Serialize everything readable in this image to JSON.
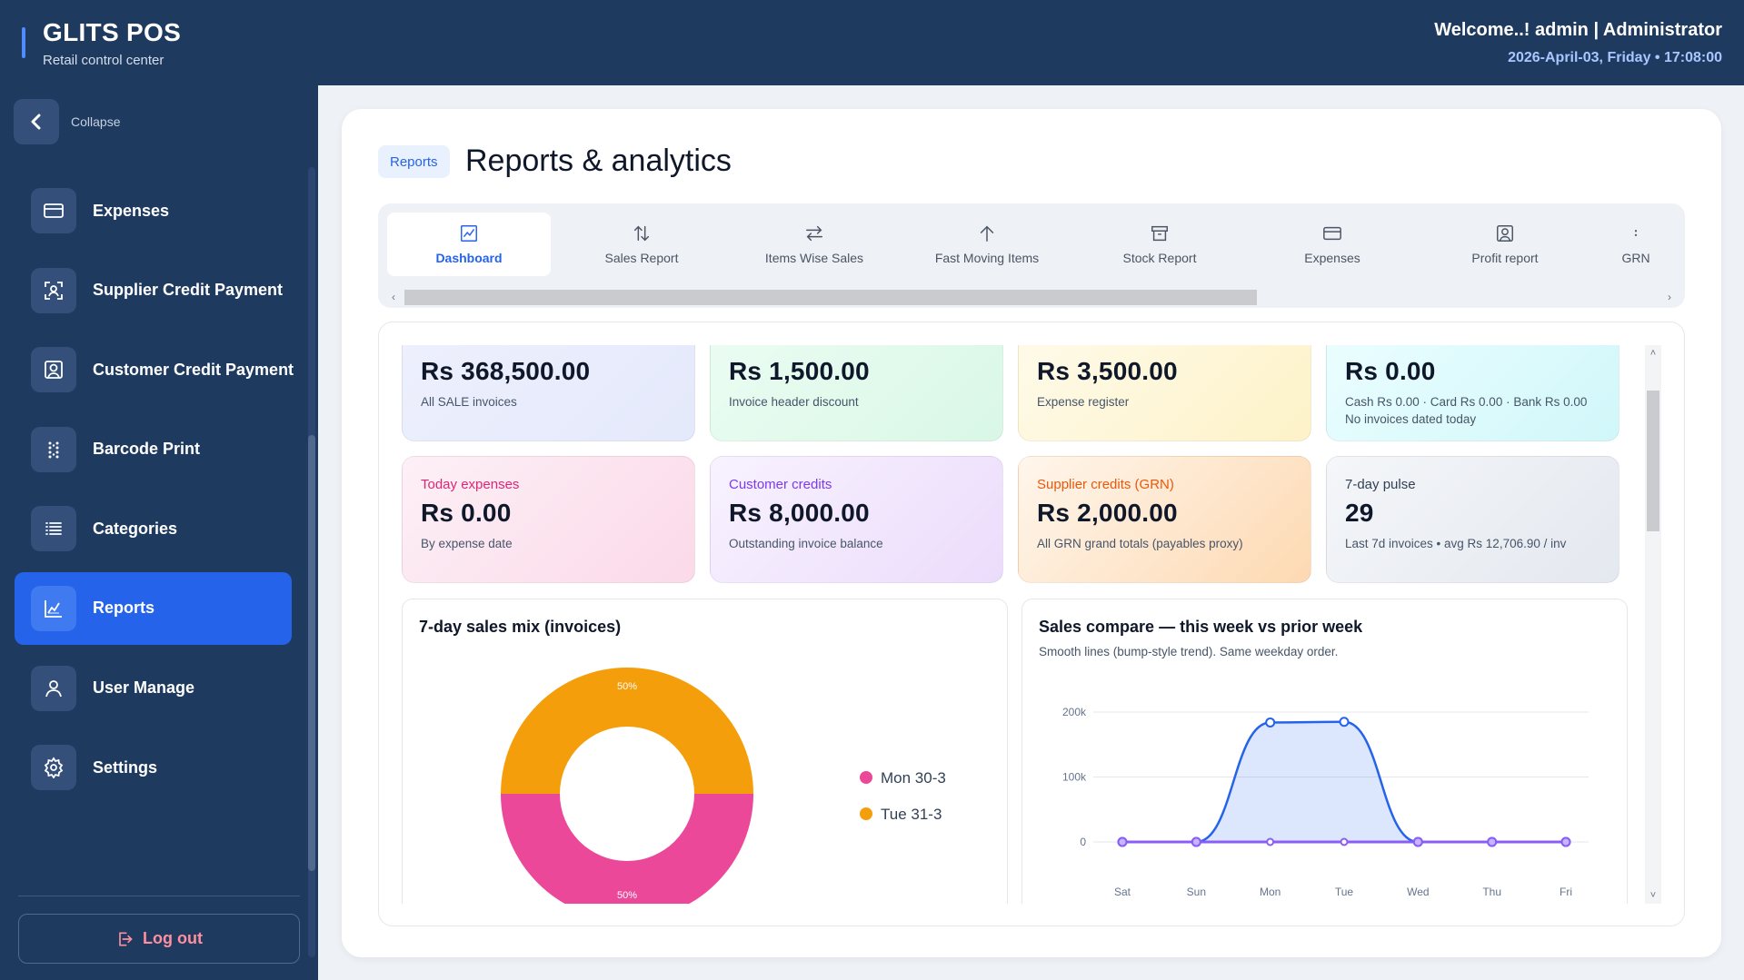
{
  "app": {
    "brand_title": "GLITS POS",
    "brand_subtitle": "Retail control center",
    "welcome": "Welcome..! admin | Administrator",
    "datetime": "2026-April-03, Friday  •  17:08:00"
  },
  "sidebar": {
    "collapse_label": "Collapse",
    "items": [
      {
        "label": "Expenses",
        "icon": "card-icon"
      },
      {
        "label": "Supplier Credit Payment",
        "icon": "user-scan-icon"
      },
      {
        "label": "Customer Credit Payment",
        "icon": "user-frame-icon"
      },
      {
        "label": "Barcode Print",
        "icon": "barcode-icon"
      },
      {
        "label": "Categories",
        "icon": "list-icon"
      },
      {
        "label": "Reports",
        "icon": "chart-icon",
        "active": true
      },
      {
        "label": "User Manage",
        "icon": "user-icon"
      },
      {
        "label": "Settings",
        "icon": "gear-icon"
      }
    ],
    "logout_label": "Log out"
  },
  "page": {
    "breadcrumb": "Reports",
    "title": "Reports & analytics"
  },
  "tabs": [
    {
      "label": "Dashboard",
      "icon": "dashboard-icon",
      "active": true
    },
    {
      "label": "Sales Report",
      "icon": "sort-arrows-icon"
    },
    {
      "label": "Items Wise Sales",
      "icon": "swap-arrows-icon"
    },
    {
      "label": "Fast Moving Items",
      "icon": "arrow-up-icon"
    },
    {
      "label": "Stock Report",
      "icon": "archive-icon"
    },
    {
      "label": "Expenses",
      "icon": "card-icon"
    },
    {
      "label": "Profit report",
      "icon": "user-frame-icon"
    },
    {
      "label": "GRN",
      "icon": "dots-icon"
    }
  ],
  "stats": [
    {
      "label": "",
      "value": "Rs 368,500.00",
      "sub": "All SALE invoices"
    },
    {
      "label": "",
      "value": "Rs 1,500.00",
      "sub": "Invoice header discount"
    },
    {
      "label": "",
      "value": "Rs 3,500.00",
      "sub": "Expense register"
    },
    {
      "label": "",
      "value": "Rs 0.00",
      "sub": "Cash Rs 0.00 · Card Rs 0.00 · Bank Rs 0.00",
      "sub2": "No invoices dated today"
    },
    {
      "label": "Today expenses",
      "value": "Rs 0.00",
      "sub": "By expense date"
    },
    {
      "label": "Customer credits",
      "value": "Rs 8,000.00",
      "sub": "Outstanding invoice balance"
    },
    {
      "label": "Supplier credits (GRN)",
      "value": "Rs 2,000.00",
      "sub": "All GRN grand totals (payables proxy)"
    },
    {
      "label": "7-day pulse",
      "value": "29",
      "sub": "Last 7d invoices • avg Rs 12,706.90 / inv"
    }
  ],
  "colors": {
    "accent": "#2563eb",
    "sidebar_bg": "#1e3a5f",
    "pink": "#ec4899",
    "orange": "#f59e0b",
    "line_blue": "#2563eb",
    "line_purple": "#8b5cf6"
  },
  "chart_data": [
    {
      "type": "pie",
      "title": "7-day sales mix (invoices)",
      "categories": [
        "Mon 30-3",
        "Tue 31-3"
      ],
      "values": [
        50,
        50
      ],
      "slice_labels": [
        "50%",
        "50%"
      ],
      "legend": "right"
    },
    {
      "type": "line",
      "title": "Sales compare — this week vs prior week",
      "subtitle": "Smooth lines (bump-style trend). Same weekday order.",
      "x": [
        "Sat",
        "Sun",
        "Mon",
        "Tue",
        "Wed",
        "Thu",
        "Fri"
      ],
      "series": [
        {
          "values": [
            0,
            0,
            184000,
            185000,
            0,
            0,
            0
          ]
        },
        {
          "values": [
            0,
            0,
            0,
            0,
            0,
            0,
            0
          ]
        }
      ],
      "ylim": [
        0,
        200000
      ],
      "yticks": [
        "0",
        "100k",
        "200k"
      ],
      "grid": true
    }
  ]
}
